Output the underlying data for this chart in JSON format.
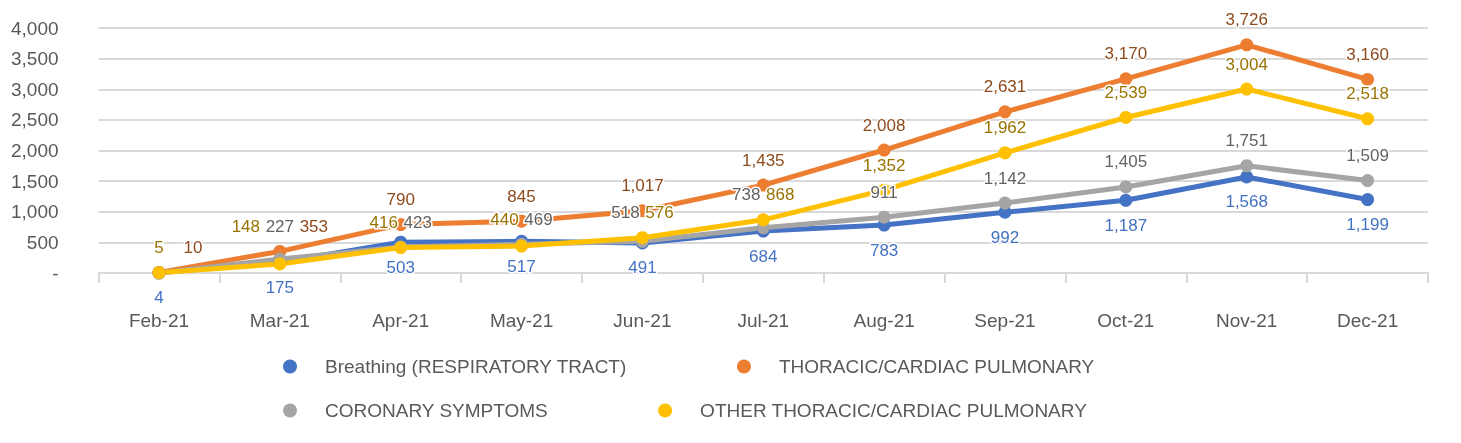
{
  "chart_data": {
    "type": "line",
    "categories": [
      "Feb-21",
      "Mar-21",
      "Apr-21",
      "May-21",
      "Jun-21",
      "Jul-21",
      "Aug-21",
      "Sep-21",
      "Oct-21",
      "Nov-21",
      "Dec-21"
    ],
    "series": [
      {
        "name": "Breathing (RESPIRATORY TRACT)",
        "color": "#4472c4",
        "values": [
          4,
          175,
          503,
          517,
          491,
          684,
          783,
          992,
          1187,
          1568,
          1199
        ],
        "value_labels": [
          "4",
          "175",
          "503",
          "517",
          "491",
          "684",
          "783",
          "992",
          "1,187",
          "1,568",
          "1,199"
        ]
      },
      {
        "name": "THORACIC/CARDIAC PULMONARY",
        "color": "#ed7d31",
        "values": [
          10,
          353,
          790,
          845,
          1017,
          1435,
          2008,
          2631,
          3170,
          3726,
          3160
        ],
        "value_labels": [
          "10",
          "353",
          "790",
          "845",
          "1,017",
          "1,435",
          "2,008",
          "2,631",
          "3,170",
          "3,726",
          "3,160"
        ]
      },
      {
        "name": "CORONARY SYMPTOMS",
        "color": "#a5a5a5",
        "values": [
          0,
          227,
          423,
          469,
          518,
          738,
          911,
          1142,
          1405,
          1751,
          1509
        ],
        "value_labels": [
          null,
          "227",
          "423",
          "469",
          "518",
          "738",
          "911",
          "1,142",
          "1,405",
          "1,751",
          "1,509"
        ]
      },
      {
        "name": "OTHER THORACIC/CARDIAC PULMONARY",
        "color": "#ffc000",
        "values": [
          5,
          148,
          416,
          440,
          576,
          868,
          1352,
          1962,
          2539,
          3004,
          2518
        ],
        "value_labels": [
          "5",
          "148",
          "416",
          "440",
          "576",
          "868",
          "1,352",
          "1,962",
          "2,539",
          "3,004",
          "2,518"
        ]
      }
    ],
    "ylim": [
      0,
      4000
    ],
    "yticks": [
      {
        "value": 0,
        "label": "-"
      },
      500,
      {
        "value": 1000,
        "label": "1,000"
      },
      {
        "value": 1500,
        "label": "1,500"
      },
      {
        "value": 2000,
        "label": "2,000"
      },
      {
        "value": 2500,
        "label": "2,500"
      },
      {
        "value": 3000,
        "label": "3,000"
      },
      {
        "value": 3500,
        "label": "3,500"
      },
      {
        "value": 4000,
        "label": "4,000"
      }
    ],
    "grid": "y",
    "legend": "bottom",
    "marker": "circle",
    "line_style": "solid"
  }
}
